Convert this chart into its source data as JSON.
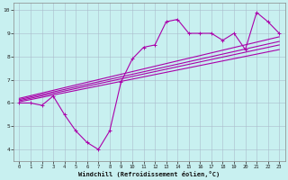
{
  "xlabel": "Windchill (Refroidissement éolien,°C)",
  "xlim": [
    -0.5,
    23.5
  ],
  "ylim": [
    3.5,
    10.3
  ],
  "xticks": [
    0,
    1,
    2,
    3,
    4,
    5,
    6,
    7,
    8,
    9,
    10,
    11,
    12,
    13,
    14,
    15,
    16,
    17,
    18,
    19,
    20,
    21,
    22,
    23
  ],
  "yticks": [
    4,
    5,
    6,
    7,
    8,
    9,
    10
  ],
  "bg_color": "#c8f0f0",
  "line_color": "#aa00aa",
  "grid_color": "#aabbcc",
  "line1_x": [
    0,
    1,
    2,
    3,
    4,
    5,
    6,
    7,
    8,
    9,
    10,
    11,
    12,
    13,
    14,
    15,
    16,
    17,
    18,
    19,
    20,
    21,
    22,
    23
  ],
  "line1_y": [
    6.0,
    6.0,
    5.9,
    6.3,
    5.5,
    4.8,
    4.3,
    4.0,
    4.8,
    6.9,
    7.9,
    8.4,
    8.5,
    9.5,
    9.6,
    9.0,
    9.0,
    9.0,
    8.7,
    9.0,
    8.3,
    9.9,
    9.5,
    9.0
  ],
  "straight_lines": [
    {
      "x": [
        0,
        23
      ],
      "y": [
        6.05,
        8.3
      ]
    },
    {
      "x": [
        0,
        23
      ],
      "y": [
        6.1,
        8.5
      ]
    },
    {
      "x": [
        0,
        23
      ],
      "y": [
        6.15,
        8.65
      ]
    },
    {
      "x": [
        0,
        23
      ],
      "y": [
        6.2,
        8.85
      ]
    }
  ]
}
